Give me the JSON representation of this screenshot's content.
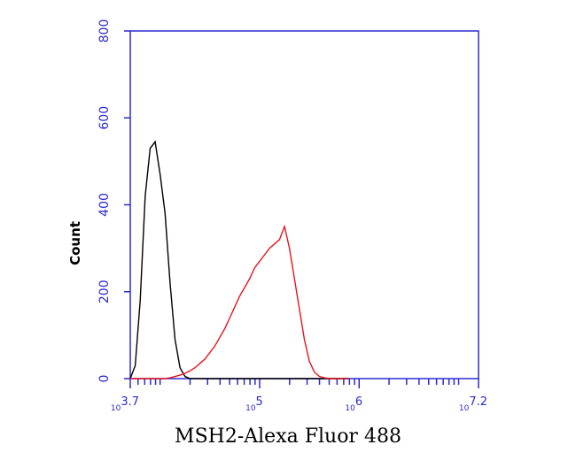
{
  "chart_data": {
    "type": "line",
    "x_label": "MSH2-Alexa Fluor 488",
    "y_label": "Count",
    "x": [
      5012,
      5623,
      6310,
      7079,
      7943,
      8913,
      10000,
      11220,
      12589,
      14125,
      15849,
      17783,
      19953,
      22387,
      25119,
      28184,
      31623,
      35481,
      39811,
      44668,
      50119,
      56234,
      63096,
      70795,
      79433,
      89125,
      100000,
      112202,
      125893,
      141254,
      158489,
      177828,
      199526,
      223872,
      251189,
      281838,
      316228,
      354813,
      398107,
      446684,
      501187,
      562341,
      630957,
      707946,
      794328
    ],
    "series": [
      {
        "color": "#000000",
        "values": [
          0,
          30,
          180,
          420,
          530,
          545,
          470,
          380,
          220,
          90,
          25,
          5,
          0,
          0,
          0,
          0,
          0,
          0,
          0,
          0,
          0,
          0,
          0,
          0,
          0,
          0,
          0,
          0,
          0,
          0,
          0,
          0,
          0,
          0,
          0,
          0,
          0,
          0,
          0,
          0,
          0,
          0,
          0,
          0,
          0
        ]
      },
      {
        "color": "#e8141e",
        "values": [
          0,
          0,
          0,
          0,
          0,
          0,
          0,
          0,
          2,
          5,
          8,
          12,
          18,
          25,
          35,
          45,
          60,
          75,
          95,
          115,
          140,
          165,
          190,
          210,
          230,
          255,
          270,
          285,
          300,
          310,
          320,
          350,
          300,
          230,
          160,
          90,
          40,
          15,
          5,
          2,
          0,
          0,
          0,
          0,
          0
        ]
      }
    ],
    "x_log": true,
    "xlim": [
      5011.872,
      15848932
    ],
    "xticks": [
      {
        "value": 5011.872,
        "label": "10",
        "exponent": "3.7"
      },
      {
        "value": 100000,
        "label": "10",
        "exponent": "5"
      },
      {
        "value": 1000000,
        "label": "10",
        "exponent": "6"
      },
      {
        "value": 15848932,
        "label": "10",
        "exponent": "7.2"
      }
    ],
    "xminorticks": [
      6000,
      7000,
      8000,
      9000,
      10000,
      20000,
      30000,
      40000,
      50000,
      60000,
      70000,
      80000,
      90000,
      200000,
      300000,
      400000,
      500000,
      600000,
      700000,
      800000,
      900000,
      2000000,
      3000000,
      4000000,
      5000000,
      6000000,
      7000000,
      8000000,
      9000000,
      10000000
    ],
    "ylim": [
      0,
      800
    ],
    "yticks": [
      0,
      200,
      400,
      600,
      800
    ],
    "axis_color": "#2b2bd0"
  }
}
